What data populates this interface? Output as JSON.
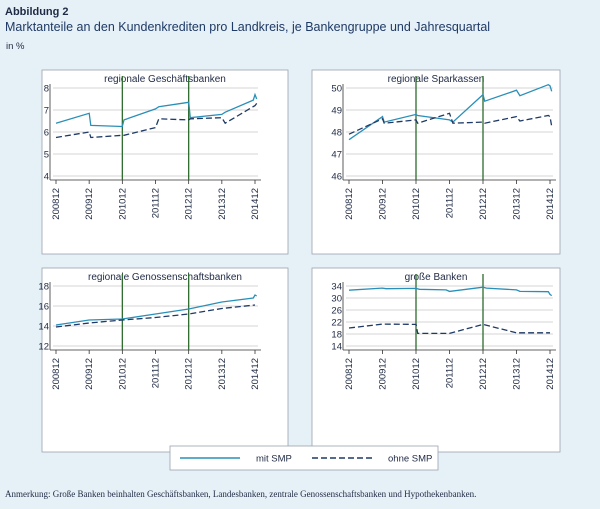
{
  "figure": {
    "label": "Abbildung 2",
    "title": "Marktanteile an den Kundenkrediten pro Landkreis, je Bankengruppe und Jahresquartal",
    "unit": "in %",
    "note": "Anmerkung: Große Banken beinhalten Geschäftsbanken, Landesbanken, zentrale Genossenschaftsbanken und Hypothekenbanken."
  },
  "colors": {
    "line": "#2a8fb8",
    "dashed": "#1f3a66",
    "vline": "#2e6b2e",
    "grid": "#c8c8c8",
    "panel_bg": "#ffffff"
  },
  "legend": {
    "items": [
      {
        "label": "mit SMP",
        "style": "solid"
      },
      {
        "label": "ohne SMP",
        "style": "dashed"
      }
    ]
  },
  "chart_data": [
    {
      "type": "line",
      "title": "regionale Geschäftsbanken",
      "ylim": [
        4,
        8
      ],
      "yticks": [
        4,
        5,
        6,
        7,
        8
      ],
      "xticks": [
        "200812",
        "200912",
        "201012",
        "201112",
        "201212",
        "201312",
        "201412"
      ],
      "vlines": [
        2,
        4
      ],
      "series": [
        {
          "name": "mit SMP",
          "style": "solid",
          "points": [
            [
              0,
              6.4
            ],
            [
              1,
              6.85
            ],
            [
              1.05,
              6.3
            ],
            [
              2,
              6.25
            ],
            [
              2.05,
              6.55
            ],
            [
              3,
              7.05
            ],
            [
              3.1,
              7.15
            ],
            [
              4,
              7.35
            ],
            [
              4.05,
              6.65
            ],
            [
              5,
              6.8
            ],
            [
              5.1,
              6.9
            ],
            [
              5.95,
              7.45
            ],
            [
              6,
              7.7
            ],
            [
              6.05,
              7.5
            ]
          ]
        },
        {
          "name": "ohne SMP",
          "style": "dashed",
          "points": [
            [
              0,
              5.75
            ],
            [
              1,
              6.0
            ],
            [
              1.05,
              5.75
            ],
            [
              2,
              5.85
            ],
            [
              2.05,
              5.85
            ],
            [
              3,
              6.2
            ],
            [
              3.1,
              6.6
            ],
            [
              4,
              6.55
            ],
            [
              4.05,
              6.6
            ],
            [
              5,
              6.65
            ],
            [
              5.1,
              6.4
            ],
            [
              6,
              7.2
            ],
            [
              6.05,
              7.3
            ]
          ]
        }
      ]
    },
    {
      "type": "line",
      "title": "regionale Sparkassen",
      "ylim": [
        46,
        50
      ],
      "yticks": [
        46,
        47,
        48,
        49,
        50
      ],
      "xticks": [
        "200812",
        "200912",
        "201012",
        "201112",
        "201212",
        "201312",
        "201412"
      ],
      "vlines": [
        2,
        4
      ],
      "series": [
        {
          "name": "mit SMP",
          "style": "solid",
          "points": [
            [
              0,
              47.65
            ],
            [
              1,
              48.7
            ],
            [
              1.05,
              48.45
            ],
            [
              2,
              48.8
            ],
            [
              2.05,
              48.75
            ],
            [
              3,
              48.55
            ],
            [
              3.1,
              48.45
            ],
            [
              4,
              49.7
            ],
            [
              4.05,
              49.4
            ],
            [
              5,
              49.9
            ],
            [
              5.1,
              49.65
            ],
            [
              5.95,
              50.15
            ],
            [
              6,
              50.1
            ],
            [
              6.05,
              49.85
            ]
          ]
        },
        {
          "name": "ohne SMP",
          "style": "dashed",
          "points": [
            [
              0,
              47.9
            ],
            [
              1,
              48.6
            ],
            [
              1.05,
              48.4
            ],
            [
              2,
              48.55
            ],
            [
              2.05,
              48.4
            ],
            [
              3,
              48.85
            ],
            [
              3.1,
              48.4
            ],
            [
              4,
              48.45
            ],
            [
              4.05,
              48.4
            ],
            [
              5,
              48.7
            ],
            [
              5.1,
              48.5
            ],
            [
              5.95,
              48.75
            ],
            [
              6,
              48.7
            ],
            [
              6.05,
              48.25
            ]
          ]
        }
      ]
    },
    {
      "type": "line",
      "title": "regionale Genossenschaftsbanken",
      "ylim": [
        12,
        18
      ],
      "yticks": [
        12,
        14,
        16,
        18
      ],
      "xticks": [
        "200812",
        "200912",
        "201012",
        "201112",
        "201212",
        "201312",
        "201412"
      ],
      "vlines": [
        2,
        4
      ],
      "series": [
        {
          "name": "mit SMP",
          "style": "solid",
          "points": [
            [
              0,
              14.1
            ],
            [
              1,
              14.6
            ],
            [
              2,
              14.7
            ],
            [
              3,
              15.2
            ],
            [
              4,
              15.7
            ],
            [
              5,
              16.4
            ],
            [
              5.95,
              16.8
            ],
            [
              6,
              17.1
            ],
            [
              6.05,
              17.0
            ]
          ]
        },
        {
          "name": "ohne SMP",
          "style": "dashed",
          "points": [
            [
              0,
              13.9
            ],
            [
              1,
              14.3
            ],
            [
              2,
              14.6
            ],
            [
              3,
              14.85
            ],
            [
              4,
              15.2
            ],
            [
              5,
              15.75
            ],
            [
              6,
              16.1
            ]
          ]
        }
      ]
    },
    {
      "type": "line",
      "title": "große Banken",
      "ylim": [
        14,
        34
      ],
      "yticks": [
        14,
        18,
        22,
        26,
        30,
        34
      ],
      "xticks": [
        "200812",
        "200912",
        "201012",
        "201112",
        "201212",
        "201312",
        "201412"
      ],
      "vlines": [
        2,
        4
      ],
      "series": [
        {
          "name": "mit SMP",
          "style": "solid",
          "points": [
            [
              0,
              32.6
            ],
            [
              1,
              33.3
            ],
            [
              1.1,
              33.1
            ],
            [
              2,
              33.2
            ],
            [
              2.1,
              32.9
            ],
            [
              2.9,
              32.7
            ],
            [
              3,
              32.2
            ],
            [
              4,
              33.6
            ],
            [
              4.1,
              33.3
            ],
            [
              5,
              32.7
            ],
            [
              5.1,
              32.2
            ],
            [
              5.95,
              32.1
            ],
            [
              6,
              31.2
            ],
            [
              6.05,
              30.8
            ]
          ]
        },
        {
          "name": "ohne SMP",
          "style": "dashed",
          "points": [
            [
              0,
              20.0
            ],
            [
              1,
              21.3
            ],
            [
              2,
              21.2
            ],
            [
              2.05,
              18.2
            ],
            [
              3,
              18.2
            ],
            [
              4,
              21.2
            ],
            [
              5,
              18.4
            ],
            [
              6,
              18.4
            ]
          ]
        }
      ]
    }
  ]
}
